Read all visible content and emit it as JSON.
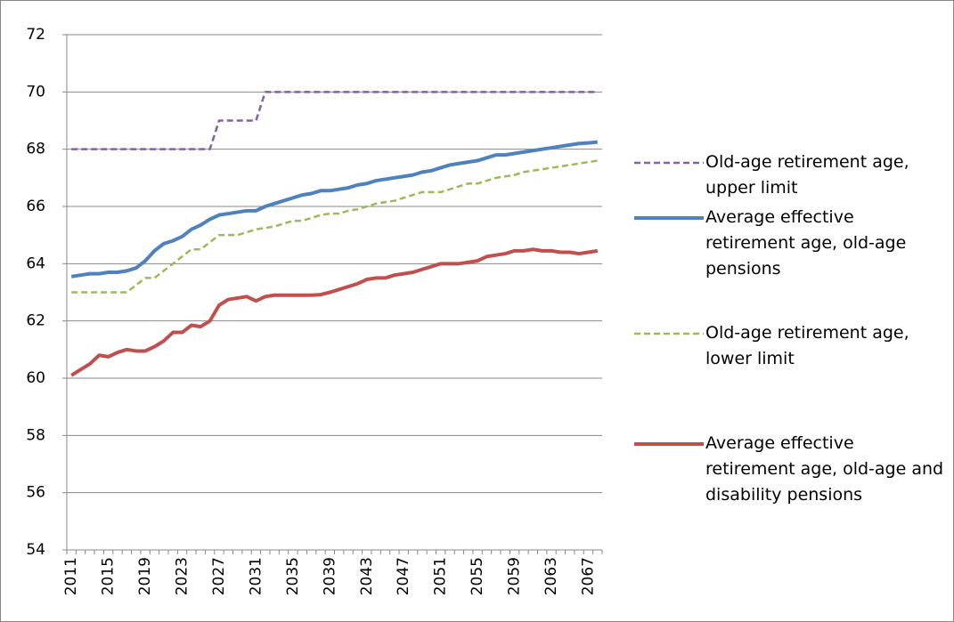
{
  "chart_data": {
    "type": "line",
    "categories": [
      "2011",
      null,
      null,
      null,
      "2015",
      null,
      null,
      null,
      "2019",
      null,
      null,
      null,
      "2023",
      null,
      null,
      null,
      "2027",
      null,
      null,
      null,
      "2031",
      null,
      null,
      null,
      "2035",
      null,
      null,
      null,
      "2039",
      null,
      null,
      null,
      "2043",
      null,
      null,
      null,
      "2047",
      null,
      null,
      null,
      "2051",
      null,
      null,
      null,
      "2055",
      null,
      null,
      null,
      "2059",
      null,
      null,
      null,
      "2063",
      null,
      null,
      null,
      "2067",
      null
    ],
    "ylim": [
      54,
      72
    ],
    "yticks": [
      54,
      56,
      58,
      60,
      62,
      64,
      66,
      68,
      70,
      72
    ],
    "grid": true,
    "legend": "right",
    "series": [
      {
        "name": "Old-age retirement age, upper limit",
        "color": "#8064a2",
        "style": "dashed",
        "values": [
          68,
          68,
          68,
          68,
          68,
          68,
          68,
          68,
          68,
          68,
          68,
          68,
          68,
          68,
          68,
          68,
          69,
          69,
          69,
          69,
          69,
          70,
          70,
          70,
          70,
          70,
          70,
          70,
          70,
          70,
          70,
          70,
          70,
          70,
          70,
          70,
          70,
          70,
          70,
          70,
          70,
          70,
          70,
          70,
          70,
          70,
          70,
          70,
          70,
          70,
          70,
          70,
          70,
          70,
          70,
          70,
          70,
          70
        ]
      },
      {
        "name": "Average effective retirement age, old-age pensions",
        "color": "#4f81bd",
        "style": "solid",
        "values": [
          63.55,
          63.6,
          63.65,
          63.65,
          63.7,
          63.7,
          63.75,
          63.85,
          64.1,
          64.45,
          64.7,
          64.8,
          64.95,
          65.2,
          65.35,
          65.55,
          65.7,
          65.75,
          65.8,
          65.85,
          65.85,
          66.0,
          66.1,
          66.2,
          66.3,
          66.4,
          66.45,
          66.55,
          66.55,
          66.6,
          66.65,
          66.75,
          66.8,
          66.9,
          66.95,
          67.0,
          67.05,
          67.1,
          67.2,
          67.25,
          67.35,
          67.45,
          67.5,
          67.55,
          67.6,
          67.7,
          67.8,
          67.8,
          67.85,
          67.9,
          67.95,
          68.0,
          68.05,
          68.1,
          68.15,
          68.2,
          68.22,
          68.25
        ]
      },
      {
        "name": "Old-age retirement age, lower limit",
        "color": "#9bbb59",
        "style": "dashed",
        "values": [
          63,
          63,
          63,
          63,
          63,
          63,
          63,
          63.25,
          63.5,
          63.5,
          63.75,
          64,
          64.25,
          64.5,
          64.5,
          64.75,
          65,
          65,
          65,
          65.1,
          65.2,
          65.25,
          65.3,
          65.4,
          65.5,
          65.5,
          65.6,
          65.7,
          65.75,
          65.75,
          65.85,
          65.9,
          66.0,
          66.1,
          66.15,
          66.2,
          66.3,
          66.4,
          66.5,
          66.5,
          66.5,
          66.6,
          66.7,
          66.8,
          66.8,
          66.9,
          67.0,
          67.05,
          67.1,
          67.2,
          67.25,
          67.3,
          67.35,
          67.4,
          67.45,
          67.5,
          67.55,
          67.6
        ]
      },
      {
        "name": "Average effective retirement age, old-age and disability pensions",
        "color": "#c0504d",
        "style": "solid",
        "values": [
          60.1,
          60.3,
          60.5,
          60.8,
          60.75,
          60.9,
          61.0,
          60.95,
          60.95,
          61.1,
          61.3,
          61.6,
          61.6,
          61.85,
          61.8,
          62.0,
          62.55,
          62.75,
          62.8,
          62.85,
          62.7,
          62.85,
          62.9,
          62.9,
          62.9,
          62.9,
          62.9,
          62.92,
          63.0,
          63.1,
          63.2,
          63.3,
          63.45,
          63.5,
          63.5,
          63.6,
          63.65,
          63.7,
          63.8,
          63.9,
          64.0,
          64.0,
          64.0,
          64.05,
          64.1,
          64.25,
          64.3,
          64.35,
          64.45,
          64.45,
          64.5,
          64.45,
          64.45,
          64.4,
          64.4,
          64.35,
          64.4,
          64.45
        ]
      }
    ]
  }
}
